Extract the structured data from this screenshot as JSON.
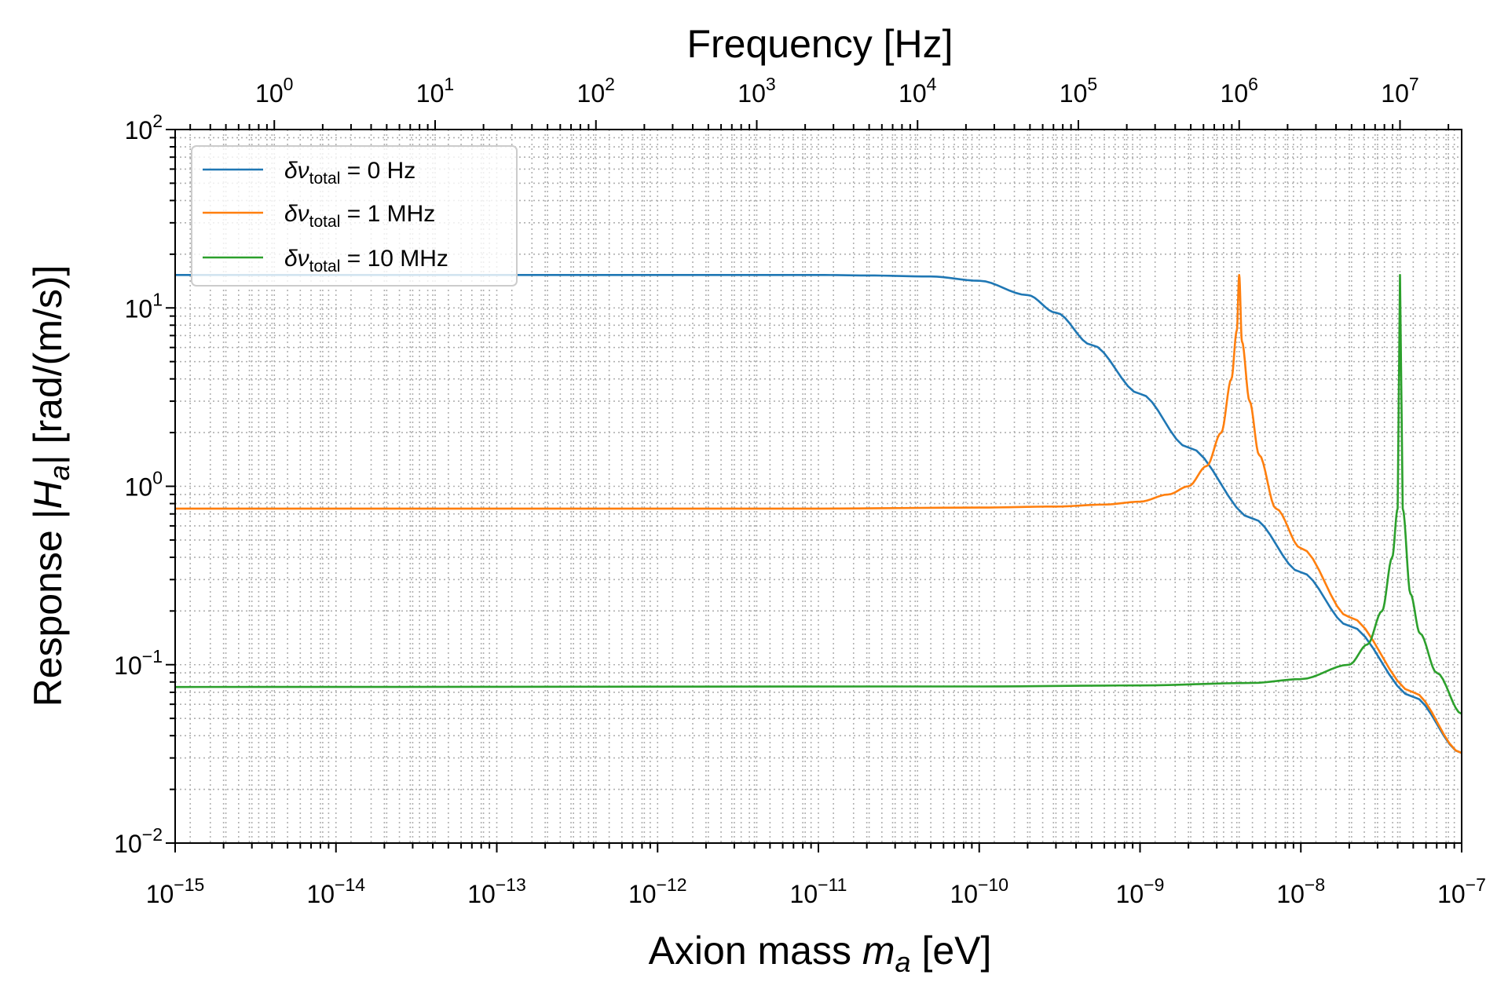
{
  "chart_data": {
    "type": "line",
    "xscale": "log",
    "yscale": "log",
    "xlabel": {
      "prefix": "Axion mass ",
      "var": "m",
      "sub": "a",
      "suffix": " [eV]"
    },
    "ylabel": {
      "prefix": "Response |",
      "var": "H",
      "sub": "a",
      "suffix": "| [rad/(m/s)]"
    },
    "top_xlabel": "Frequency [Hz]",
    "xlim": [
      1e-15,
      1e-07
    ],
    "ylim": [
      0.01,
      100
    ],
    "top_xlim_hz": [
      0.2418,
      24180000
    ],
    "x_ticks": [
      {
        "value": 1e-15,
        "base": "10",
        "exp": "−15"
      },
      {
        "value": 1e-14,
        "base": "10",
        "exp": "−14"
      },
      {
        "value": 1e-13,
        "base": "10",
        "exp": "−13"
      },
      {
        "value": 1e-12,
        "base": "10",
        "exp": "−12"
      },
      {
        "value": 1e-11,
        "base": "10",
        "exp": "−11"
      },
      {
        "value": 1e-10,
        "base": "10",
        "exp": "−10"
      },
      {
        "value": 1e-09,
        "base": "10",
        "exp": "−9"
      },
      {
        "value": 1e-08,
        "base": "10",
        "exp": "−8"
      },
      {
        "value": 1e-07,
        "base": "10",
        "exp": "−7"
      }
    ],
    "y_ticks": [
      {
        "value": 0.01,
        "base": "10",
        "exp": "−2"
      },
      {
        "value": 0.1,
        "base": "10",
        "exp": "−1"
      },
      {
        "value": 1,
        "base": "10",
        "exp": "0"
      },
      {
        "value": 10,
        "base": "10",
        "exp": "1"
      },
      {
        "value": 100,
        "base": "10",
        "exp": "2"
      }
    ],
    "top_ticks": [
      {
        "value": 1,
        "base": "10",
        "exp": "0"
      },
      {
        "value": 10,
        "base": "10",
        "exp": "1"
      },
      {
        "value": 100,
        "base": "10",
        "exp": "2"
      },
      {
        "value": 1000,
        "base": "10",
        "exp": "3"
      },
      {
        "value": 10000,
        "base": "10",
        "exp": "4"
      },
      {
        "value": 100000,
        "base": "10",
        "exp": "5"
      },
      {
        "value": 1000000,
        "base": "10",
        "exp": "6"
      },
      {
        "value": 10000000,
        "base": "10",
        "exp": "7"
      }
    ],
    "grid": "both-major-minor-dotted",
    "legend_position": "top-left",
    "series": [
      {
        "name": "δν_total = 0 Hz",
        "label_main": "δν",
        "label_sub": "total",
        "label_rest": " = 0 Hz",
        "color": "#1f77b4",
        "x": [
          1e-15,
          1e-12,
          1e-11,
          2e-11,
          5e-11,
          1e-10,
          2e-10,
          3e-10,
          5e-10,
          1e-09,
          2e-09,
          5e-09,
          1e-08,
          2e-08,
          5e-08,
          1e-07
        ],
        "y": [
          15.3,
          15.3,
          15.3,
          15.2,
          15.0,
          14.2,
          11.8,
          9.4,
          6.2,
          3.3,
          1.65,
          0.66,
          0.33,
          0.165,
          0.066,
          0.032
        ]
      },
      {
        "name": "δν_total = 1 MHz",
        "label_main": "δν",
        "label_sub": "total",
        "label_rest": " = 1 MHz",
        "color": "#ff7f0e",
        "x": [
          1e-15,
          1e-11,
          1e-10,
          3e-10,
          6e-10,
          1e-09,
          1.5e-09,
          2e-09,
          2.6e-09,
          3.2e-09,
          3.7e-09,
          4e-09,
          4.136e-09,
          4.3e-09,
          4.8e-09,
          5.5e-09,
          7e-09,
          1e-08,
          2e-08,
          5e-08,
          1e-07
        ],
        "y": [
          0.75,
          0.75,
          0.76,
          0.77,
          0.79,
          0.82,
          0.9,
          1.0,
          1.3,
          2.0,
          4.0,
          7.5,
          15.3,
          6.5,
          3.0,
          1.5,
          0.75,
          0.45,
          0.185,
          0.07,
          0.032
        ]
      },
      {
        "name": "δν_total = 10 MHz",
        "label_main": "δν",
        "label_sub": "total",
        "label_rest": " = 10 MHz",
        "color": "#2ca02c",
        "x": [
          1e-15,
          1e-10,
          1e-09,
          5e-09,
          1e-08,
          2e-08,
          2.6e-08,
          3.2e-08,
          3.7e-08,
          4e-08,
          4.136e-08,
          4.3e-08,
          4.8e-08,
          5.5e-08,
          7e-08,
          1e-07
        ],
        "y": [
          0.075,
          0.0755,
          0.0765,
          0.079,
          0.083,
          0.1,
          0.13,
          0.2,
          0.4,
          0.75,
          15.3,
          0.75,
          0.25,
          0.15,
          0.09,
          0.053
        ]
      }
    ]
  }
}
